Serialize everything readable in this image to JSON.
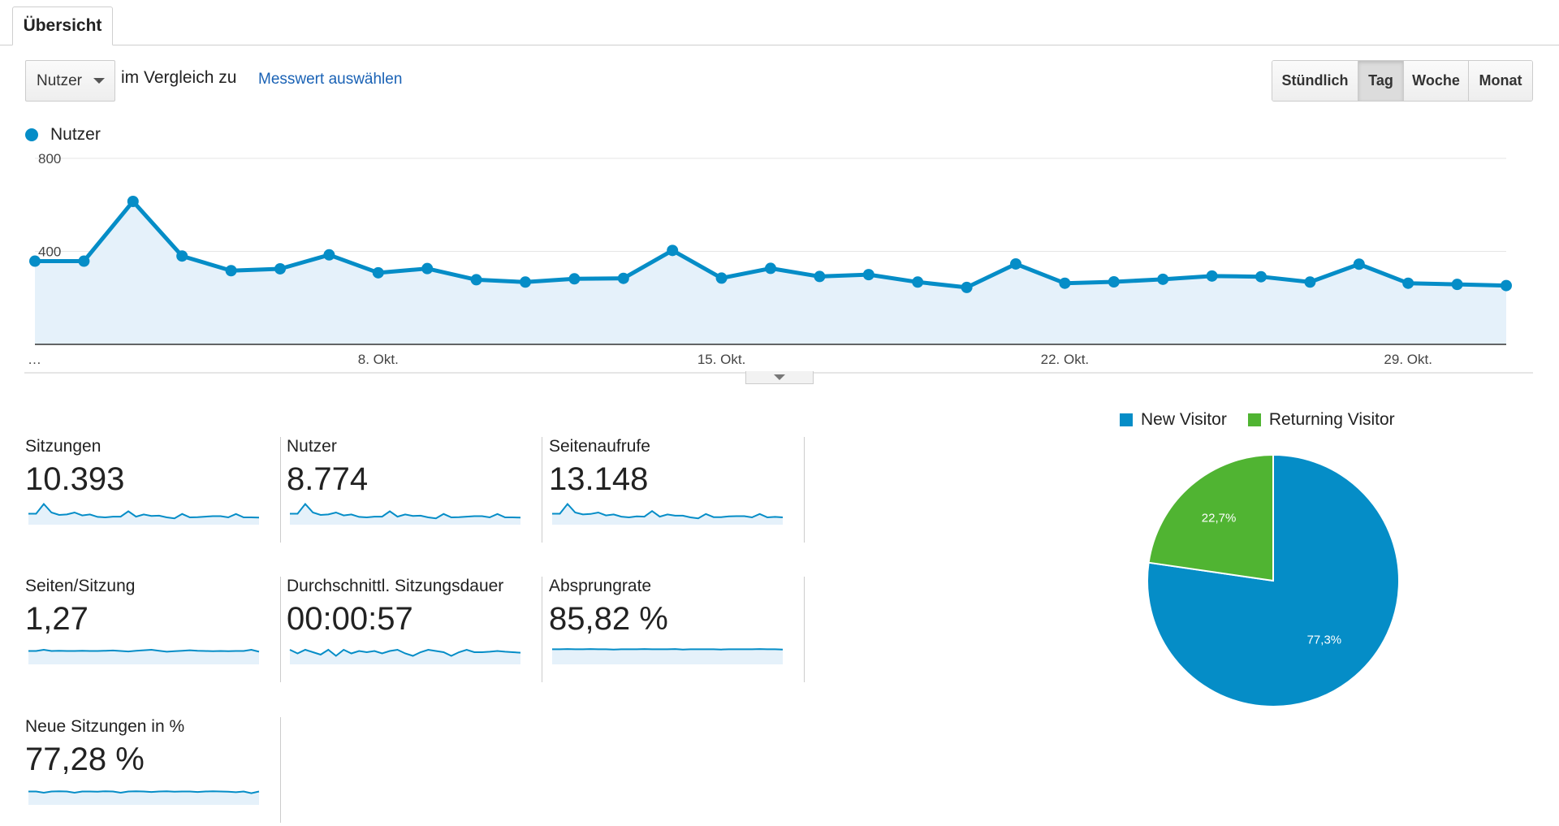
{
  "tabs": {
    "active": "Übersicht"
  },
  "controls": {
    "metric_select": "Nutzer",
    "compare_text": "im Vergleich zu",
    "metric_link": "Messwert auswählen",
    "ranges": [
      {
        "label": "Stündlich",
        "active": false
      },
      {
        "label": "Tag",
        "active": true
      },
      {
        "label": "Woche",
        "active": false
      },
      {
        "label": "Monat",
        "active": false
      }
    ]
  },
  "chart_data": [
    {
      "type": "area",
      "series": [
        {
          "name": "Nutzer",
          "color": "#058dc7",
          "values": [
            358,
            358,
            615,
            380,
            317,
            325,
            385,
            308,
            326,
            278,
            268,
            282,
            284,
            404,
            285,
            327,
            292,
            300,
            268,
            245,
            346,
            263,
            269,
            280,
            294,
            291,
            268,
            345,
            263,
            258,
            253
          ]
        }
      ],
      "x_tick_labels": [
        "…",
        "8. Okt.",
        "15. Okt.",
        "22. Okt.",
        "29. Okt."
      ],
      "x_tick_index": [
        0,
        7,
        14,
        21,
        28
      ],
      "y_ticks": [
        400,
        800
      ],
      "ylim": [
        0,
        800
      ],
      "grid": true
    },
    {
      "type": "pie",
      "legend": [
        "New Visitor",
        "Returning Visitor"
      ],
      "values": [
        77.3,
        22.7
      ],
      "labels": [
        "77,3%",
        "22,7%"
      ],
      "colors": [
        "#058dc7",
        "#50b432"
      ]
    }
  ],
  "scorecards": [
    {
      "name": "Sitzungen",
      "value": "10.393"
    },
    {
      "name": "Nutzer",
      "value": "8.774"
    },
    {
      "name": "Seitenaufrufe",
      "value": "13.148"
    },
    {
      "name": "Seiten/Sitzung",
      "value": "1,27"
    },
    {
      "name": "Durchschnittl. Sitzungsdauer",
      "value": "00:00:57"
    },
    {
      "name": "Absprungrate",
      "value": "85,82 %"
    },
    {
      "name": "Neue Sitzungen in %",
      "value": "77,28 %"
    }
  ]
}
